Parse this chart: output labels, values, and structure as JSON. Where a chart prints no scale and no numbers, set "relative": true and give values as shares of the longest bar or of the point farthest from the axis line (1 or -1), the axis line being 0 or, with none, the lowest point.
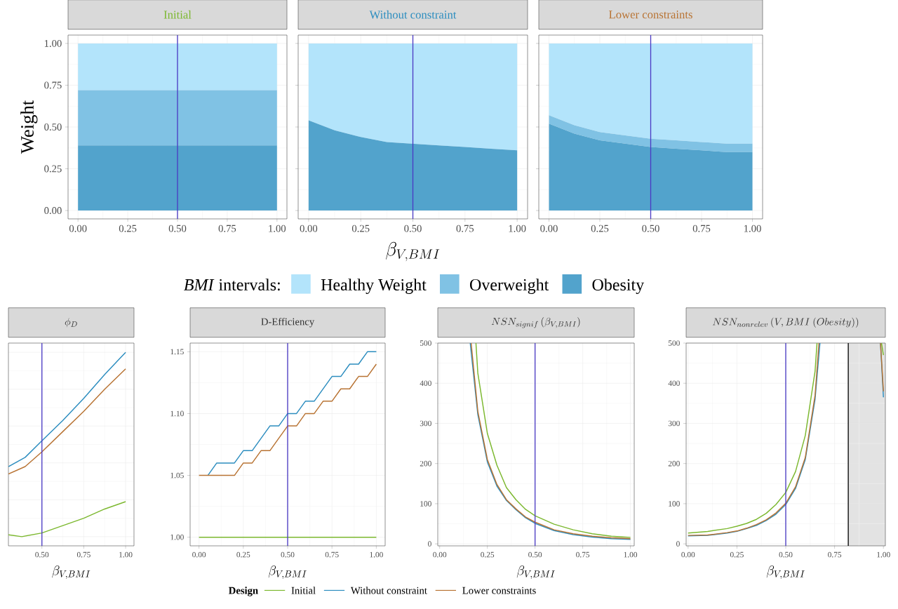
{
  "chart_data": [
    {
      "type": "area",
      "stacked": true,
      "title": "Initial",
      "ylabel": "Weight",
      "grid": true,
      "x": [
        0,
        1
      ],
      "series": [
        {
          "color": "#52a3cc",
          "values": [
            0.39,
            0.39
          ]
        },
        {
          "color": "#80c2e4",
          "values": [
            0.33,
            0.33
          ]
        },
        {
          "color": "#b3e4fb",
          "values": [
            0.28,
            0.28
          ]
        }
      ],
      "xlim": [
        -0.05,
        1.05
      ],
      "ylim": [
        -0.05,
        1.05
      ],
      "xticks": [
        {
          "value": 0,
          "label": "0.00"
        },
        {
          "value": 0.25,
          "label": "0.25"
        },
        {
          "value": 0.5,
          "label": "0.50"
        },
        {
          "value": 0.75,
          "label": "0.75"
        },
        {
          "value": 1,
          "label": "1.00"
        }
      ],
      "yticks": [
        {
          "value": 0,
          "label": "0.00"
        },
        {
          "value": 0.25,
          "label": "0.25"
        },
        {
          "value": 0.5,
          "label": "0.50"
        },
        {
          "value": 0.75,
          "label": "0.75"
        },
        {
          "value": 1,
          "label": "1.00"
        }
      ],
      "ref_lines": [
        {
          "axis": "x",
          "value": 0.5,
          "color": "#4b3bc4"
        }
      ]
    },
    {
      "type": "area",
      "stacked": true,
      "title": "Without constraint",
      "xlabel": "\\beta_{V,BMI}",
      "grid": true,
      "tick_labels": "x",
      "x": [
        0,
        0.125,
        0.25,
        0.375,
        0.5,
        0.625,
        0.75,
        0.875,
        1
      ],
      "series": [
        {
          "color": "#52a3cc",
          "values": [
            0.54,
            0.48,
            0.44,
            0.41,
            0.4,
            0.39,
            0.38,
            0.37,
            0.36
          ]
        },
        {
          "color": "#b3e4fb",
          "values": [
            0.46,
            0.52,
            0.56,
            0.59,
            0.6,
            0.61,
            0.62,
            0.63,
            0.64
          ]
        }
      ],
      "xlim": [
        -0.05,
        1.05
      ],
      "ylim": [
        -0.05,
        1.05
      ],
      "xticks": [
        {
          "value": 0,
          "label": "0.00"
        },
        {
          "value": 0.25,
          "label": "0.25"
        },
        {
          "value": 0.5,
          "label": "0.50"
        },
        {
          "value": 0.75,
          "label": "0.75"
        },
        {
          "value": 1,
          "label": "1.00"
        }
      ],
      "yticks": [
        {
          "value": 0,
          "label": null
        },
        {
          "value": 0.25,
          "label": null
        },
        {
          "value": 0.5,
          "label": null
        },
        {
          "value": 0.75,
          "label": null
        },
        {
          "value": 1,
          "label": null
        }
      ],
      "ref_lines": [
        {
          "axis": "x",
          "value": 0.5,
          "color": "#4b3bc4"
        }
      ]
    },
    {
      "type": "area",
      "stacked": true,
      "title": "Lower constraints",
      "grid": true,
      "tick_labels": "x",
      "legend": "bottom",
      "legend_title": "*BMI* intervals:",
      "x": [
        0,
        0.125,
        0.25,
        0.375,
        0.5,
        0.625,
        0.75,
        0.875,
        1
      ],
      "series": [
        {
          "name": "Obesity",
          "color": "#52a3cc",
          "values": [
            0.52,
            0.46,
            0.42,
            0.4,
            0.38,
            0.37,
            0.36,
            0.35,
            0.35
          ]
        },
        {
          "name": "Overweight",
          "color": "#80c2e4",
          "values": [
            0.05,
            0.05,
            0.05,
            0.05,
            0.05,
            0.05,
            0.05,
            0.05,
            0.05
          ]
        },
        {
          "name": "Healthy Weight",
          "color": "#b3e4fb",
          "values": [
            0.43,
            0.49,
            0.53,
            0.55,
            0.57,
            0.58,
            0.59,
            0.6,
            0.6
          ]
        }
      ],
      "xlim": [
        -0.05,
        1.05
      ],
      "ylim": [
        -0.05,
        1.05
      ],
      "xticks": [
        {
          "value": 0,
          "label": "0.00"
        },
        {
          "value": 0.25,
          "label": "0.25"
        },
        {
          "value": 0.5,
          "label": "0.50"
        },
        {
          "value": 0.75,
          "label": "0.75"
        },
        {
          "value": 1,
          "label": "1.00"
        }
      ],
      "yticks": [
        {
          "value": 0,
          "label": null
        },
        {
          "value": 0.25,
          "label": null
        },
        {
          "value": 0.5,
          "label": null
        },
        {
          "value": 0.75,
          "label": null
        },
        {
          "value": 1,
          "label": null
        }
      ],
      "ref_lines": [
        {
          "axis": "x",
          "value": 0.5,
          "color": "#4b3bc4"
        }
      ]
    },
    {
      "type": "line",
      "relative": true,
      "title": "\\phi_D",
      "xlabel": "\\beta_{V,BMI}",
      "grid": true,
      "series": [
        {
          "color": "#7cb82f",
          "x": [
            0.3,
            0.38,
            0.5,
            0.625,
            0.75,
            0.875,
            1
          ],
          "values": [
            0.01,
            0,
            0.02,
            0.06,
            0.1,
            0.15,
            0.19
          ]
        },
        {
          "color": "#2c8dbf",
          "x": [
            0.3,
            0.4,
            0.5,
            0.625,
            0.75,
            0.875,
            1
          ],
          "values": [
            0.38,
            0.43,
            0.52,
            0.63,
            0.75,
            0.88,
            1
          ]
        },
        {
          "color": "#b87333",
          "x": [
            0.3,
            0.4,
            0.5,
            0.625,
            0.75,
            0.875,
            1
          ],
          "values": [
            0.34,
            0.38,
            0.46,
            0.57,
            0.68,
            0.8,
            0.91
          ]
        }
      ],
      "xlim": [
        0.3,
        1.05
      ],
      "xticks": [
        {
          "value": 0.5,
          "label": "0.50"
        },
        {
          "value": 0.75,
          "label": "0.75"
        },
        {
          "value": 1,
          "label": "1.00"
        }
      ],
      "ref_lines": [
        {
          "axis": "x",
          "value": 0.5,
          "color": "#4b3bc4"
        }
      ]
    },
    {
      "type": "line",
      "title": "D-Efficiency",
      "xlabel": "\\beta_{V,BMI}",
      "grid": true,
      "legend": "bottom",
      "legend_title": "Design",
      "x": [
        0,
        0.05,
        0.1,
        0.15,
        0.2,
        0.25,
        0.3,
        0.35,
        0.4,
        0.45,
        0.5,
        0.55,
        0.6,
        0.65,
        0.7,
        0.75,
        0.8,
        0.85,
        0.9,
        0.95,
        1
      ],
      "series": [
        {
          "name": "Initial",
          "color": "#7cb82f",
          "values": [
            1,
            1,
            1,
            1,
            1,
            1,
            1,
            1,
            1,
            1,
            1,
            1,
            1,
            1,
            1,
            1,
            1,
            1,
            1,
            1,
            1
          ]
        },
        {
          "name": "Without constraint",
          "color": "#2c8dbf",
          "values": [
            null,
            1.05,
            1.06,
            1.06,
            1.06,
            1.07,
            1.07,
            1.08,
            1.09,
            1.09,
            1.1,
            1.1,
            1.11,
            1.11,
            1.12,
            1.13,
            1.13,
            1.14,
            1.14,
            1.15,
            1.15
          ]
        },
        {
          "name": "Lower constraints",
          "color": "#b87333",
          "values": [
            1.05,
            1.05,
            1.05,
            1.05,
            1.05,
            1.06,
            1.06,
            1.07,
            1.07,
            1.08,
            1.09,
            1.09,
            1.1,
            1.1,
            1.11,
            1.11,
            1.12,
            1.12,
            1.13,
            1.13,
            1.14
          ]
        }
      ],
      "xlim": [
        -0.05,
        1.05
      ],
      "ylim": [
        0.993,
        1.157
      ],
      "xticks": [
        {
          "value": 0,
          "label": "0.00"
        },
        {
          "value": 0.25,
          "label": "0.25"
        },
        {
          "value": 0.5,
          "label": "0.50"
        },
        {
          "value": 0.75,
          "label": "0.75"
        },
        {
          "value": 1,
          "label": "1.00"
        }
      ],
      "yticks": [
        {
          "value": 1,
          "label": "1.00"
        },
        {
          "value": 1.05,
          "label": "1.05"
        },
        {
          "value": 1.1,
          "label": "1.10"
        },
        {
          "value": 1.15,
          "label": "1.15"
        }
      ],
      "ref_lines": [
        {
          "axis": "x",
          "value": 0.5,
          "color": "#4b3bc4"
        }
      ]
    },
    {
      "type": "line",
      "title": "NSN_{signif}\\left(\\beta_{V,BMI}\\right)",
      "xlabel": "\\beta_{V,BMI}",
      "grid": true,
      "series": [
        {
          "color": "#7cb82f",
          "x": [
            0.19,
            0.2,
            0.25,
            0.3,
            0.35,
            0.4,
            0.45,
            0.5,
            0.6,
            0.7,
            0.8,
            0.9,
            1
          ],
          "values": [
            500,
            425,
            275,
            196,
            140,
            110,
            86,
            70,
            49,
            35,
            25,
            19,
            16
          ]
        },
        {
          "color": "#2c8dbf",
          "x": [
            0.16,
            0.2,
            0.25,
            0.3,
            0.35,
            0.4,
            0.45,
            0.5,
            0.6,
            0.7,
            0.8,
            0.9,
            1
          ],
          "values": [
            500,
            322,
            204,
            144,
            108,
            85,
            65,
            51,
            33,
            23,
            17,
            13,
            11
          ]
        },
        {
          "color": "#b87333",
          "x": [
            0.165,
            0.2,
            0.25,
            0.3,
            0.35,
            0.4,
            0.45,
            0.5,
            0.6,
            0.7,
            0.8,
            0.9,
            1
          ],
          "values": [
            500,
            330,
            210,
            148,
            110,
            87,
            67,
            54,
            35,
            25,
            19,
            15,
            13
          ]
        }
      ],
      "xlim": [
        -0.01,
        1.02
      ],
      "ylim": [
        -5,
        500
      ],
      "xticks": [
        {
          "value": 0,
          "label": "0.00"
        },
        {
          "value": 0.25,
          "label": "0.25"
        },
        {
          "value": 0.5,
          "label": "0.50"
        },
        {
          "value": 0.75,
          "label": "0.75"
        },
        {
          "value": 1,
          "label": "1.00"
        }
      ],
      "yticks": [
        0,
        100,
        200,
        300,
        400,
        500
      ],
      "ref_lines": [
        {
          "axis": "x",
          "value": 0.5,
          "color": "#4b3bc4"
        }
      ]
    },
    {
      "type": "line",
      "title": "NSN_{nonrelev}\\left(V, BMI\\ (Obesity)\\right)",
      "xlabel": "\\beta_{V,BMI}",
      "grid": true,
      "series": [
        {
          "color": "#7cb82f",
          "x": [
            0,
            0.1,
            0.2,
            0.25,
            0.3,
            0.35,
            0.4,
            0.45,
            0.5,
            0.55,
            0.6,
            0.65,
            0.66,
            0.8,
            0.99,
            1
          ],
          "values": [
            27,
            31,
            38,
            44,
            51,
            61,
            76,
            98,
            128,
            180,
            270,
            430,
            500,
            null,
            500,
            470
          ]
        },
        {
          "color": "#2c8dbf",
          "x": [
            0,
            0.1,
            0.2,
            0.25,
            0.3,
            0.35,
            0.4,
            0.45,
            0.5,
            0.55,
            0.6,
            0.65,
            0.675,
            0.8,
            0.985,
            1
          ],
          "values": [
            20,
            21,
            27,
            31,
            38,
            46,
            58,
            74,
            98,
            138,
            210,
            360,
            500,
            null,
            500,
            365
          ]
        },
        {
          "color": "#b87333",
          "x": [
            0,
            0.1,
            0.2,
            0.25,
            0.3,
            0.35,
            0.4,
            0.45,
            0.5,
            0.55,
            0.6,
            0.65,
            0.67,
            0.8,
            0.985,
            1
          ],
          "values": [
            21,
            22,
            28,
            32,
            39,
            48,
            60,
            77,
            101,
            142,
            215,
            370,
            500,
            null,
            500,
            380
          ]
        }
      ],
      "xlim": [
        -0.01,
        1.01
      ],
      "ylim": [
        -5,
        500
      ],
      "xticks": [
        {
          "value": 0,
          "label": "0.00"
        },
        {
          "value": 0.25,
          "label": "0.25"
        },
        {
          "value": 0.5,
          "label": "0.50"
        },
        {
          "value": 0.75,
          "label": "0.75"
        },
        {
          "value": 1,
          "label": "1.00"
        }
      ],
      "yticks": [
        0,
        100,
        200,
        300,
        400,
        500
      ],
      "bands": [
        {
          "axis": "x",
          "from": 0.82,
          "to": 1.01,
          "color": "#e3e3e3"
        }
      ],
      "ref_lines": [
        {
          "axis": "x",
          "value": 0.5,
          "color": "#4b3bc4"
        },
        {
          "axis": "x",
          "value": 0.82,
          "color": "#000000"
        }
      ]
    }
  ]
}
